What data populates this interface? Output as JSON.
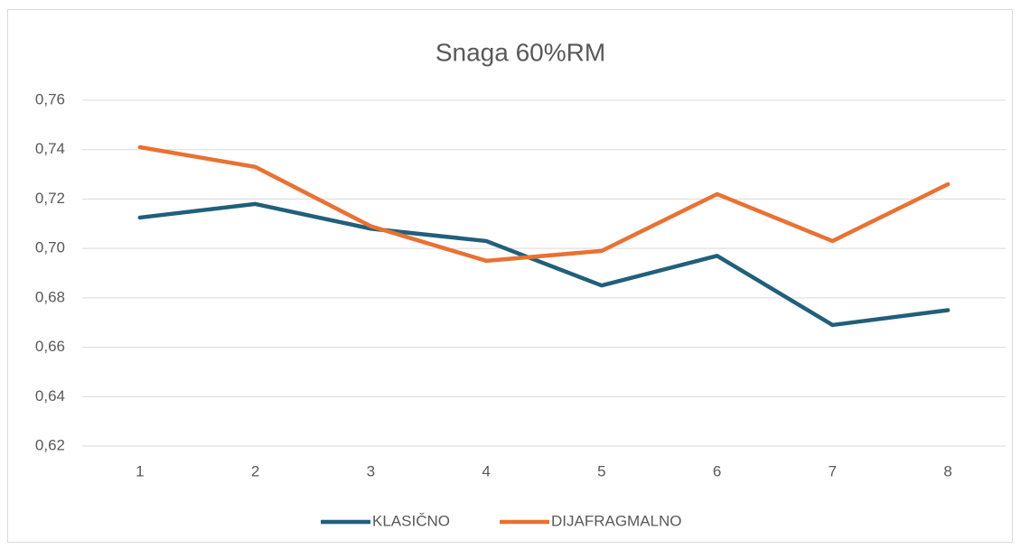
{
  "chart_data": {
    "type": "line",
    "title": "Snaga 60%RM",
    "categories": [
      "1",
      "2",
      "3",
      "4",
      "5",
      "6",
      "7",
      "8"
    ],
    "series": [
      {
        "name": "KLASIČNO",
        "color": "#215f7a",
        "values": [
          0.7125,
          0.718,
          0.708,
          0.703,
          0.685,
          0.697,
          0.669,
          0.675
        ]
      },
      {
        "name": "DIJAFRAGMALNO",
        "color": "#e97132",
        "values": [
          0.741,
          0.733,
          0.709,
          0.695,
          0.699,
          0.722,
          0.703,
          0.726
        ]
      }
    ],
    "ylim": [
      0.62,
      0.76
    ],
    "yticks": [
      {
        "value": 0.62,
        "label": "0,62"
      },
      {
        "value": 0.64,
        "label": "0,64"
      },
      {
        "value": 0.66,
        "label": "0,66"
      },
      {
        "value": 0.68,
        "label": "0,68"
      },
      {
        "value": 0.7,
        "label": "0,70"
      },
      {
        "value": 0.72,
        "label": "0,72"
      },
      {
        "value": 0.74,
        "label": "0,74"
      },
      {
        "value": 0.76,
        "label": "0,76"
      }
    ],
    "grid": true,
    "legend": "bottom"
  }
}
